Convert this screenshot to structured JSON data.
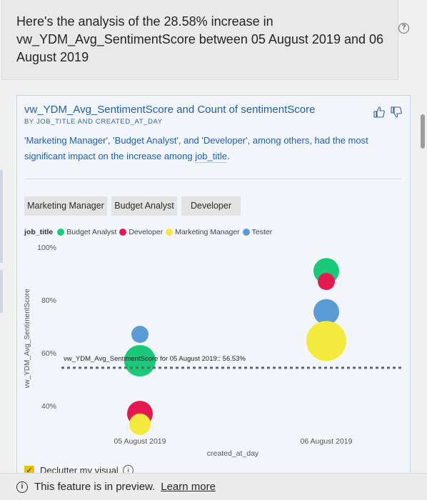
{
  "header": {
    "text": "Here's the analysis of the 28.58% increase in vw_YDM_Avg_SentimentScore between 05 August 2019 and 06 August 2019",
    "help_icon": "question-circle-icon"
  },
  "card": {
    "title": "vw_YDM_Avg_SentimentScore and Count of sentimentScore",
    "subtitle": "BY JOB_TITLE AND CREATED_AT_DAY",
    "description_before": "'Marketing Manager', 'Budget Analyst', and 'Developer', among others, had the most significant impact on the increase among ",
    "description_field": "job_title",
    "description_after": ".",
    "chips": [
      "Marketing Manager",
      "Budget Analyst",
      "Developer"
    ],
    "declutter_label": "Declutter my visual"
  },
  "colors": {
    "Budget Analyst": "#1ac97a",
    "Developer": "#e5194f",
    "Marketing Manager": "#f4ea3e",
    "Tester": "#5b9bd5"
  },
  "chart_data": {
    "type": "scatter",
    "legend_title": "job_title",
    "legend": [
      "Budget Analyst",
      "Developer",
      "Marketing Manager",
      "Tester"
    ],
    "xlabel": "created_at_day",
    "ylabel": "vw_YDM_Avg_SentimentScore",
    "categories": [
      "05 August 2019",
      "06 August 2019"
    ],
    "y_ticks": [
      "40%",
      "60%",
      "80%",
      "100%"
    ],
    "ylim": [
      0.34,
      1.0
    ],
    "reference_line": {
      "value": 0.5653,
      "label": "vw_YDM_Avg_SentimentScore for 05 August 2019:: 56.53%"
    },
    "series": [
      {
        "name": "Tester",
        "points": [
          {
            "x": "05 August 2019",
            "y": 0.67,
            "r": 12
          },
          {
            "x": "06 August 2019",
            "y": 0.755,
            "r": 18
          }
        ]
      },
      {
        "name": "Budget Analyst",
        "points": [
          {
            "x": "05 August 2019",
            "y": 0.57,
            "r": 22
          },
          {
            "x": "06 August 2019",
            "y": 0.91,
            "r": 18
          }
        ]
      },
      {
        "name": "Developer",
        "points": [
          {
            "x": "05 August 2019",
            "y": 0.37,
            "r": 18
          },
          {
            "x": "06 August 2019",
            "y": 0.87,
            "r": 12
          }
        ]
      },
      {
        "name": "Marketing Manager",
        "points": [
          {
            "x": "05 August 2019",
            "y": 0.33,
            "r": 15
          },
          {
            "x": "06 August 2019",
            "y": 0.645,
            "r": 28
          }
        ]
      }
    ]
  },
  "footer": {
    "info_icon": "info-circle-icon",
    "text": "This feature is in preview.",
    "link": "Learn more"
  }
}
